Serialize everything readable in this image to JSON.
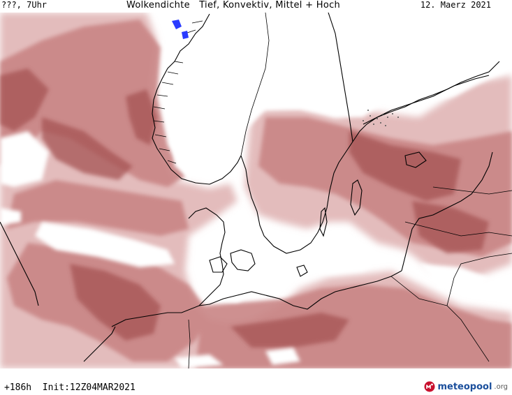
{
  "header": {
    "left": "???, 7Uhr",
    "title": "Wolkendichte   Tief, Konvektiv, Mittel + Hoch",
    "date": "12. Maerz 2021"
  },
  "footer": {
    "init": "+186h  Init:12Z04MAR2021",
    "brand": "meteopool",
    "brand_tld": ".org"
  },
  "colors": {
    "cloud_light": "#e9c9c9",
    "cloud_mid": "#c98a8a",
    "cloud_dark": "#a85656",
    "coast": "#000000",
    "precip_blue": "#2a3bff",
    "brand_red": "#c8102e",
    "brand_blue": "#1b4f9c"
  },
  "map": {
    "type": "cloud cover map",
    "region": "North Sea / Scandinavia / Baltic"
  }
}
